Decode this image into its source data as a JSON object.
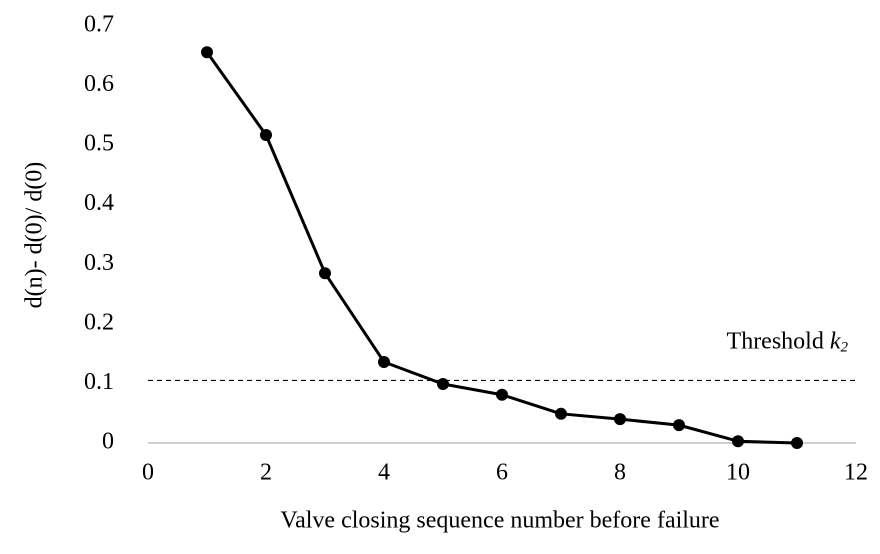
{
  "chart_data": {
    "type": "line",
    "x_label": "Valve closing sequence number before failure",
    "y_label": "d(n)- d(0)/ d(0)",
    "x": [
      1,
      2,
      3,
      4,
      5,
      6,
      7,
      8,
      9,
      10,
      11
    ],
    "series": [
      {
        "color": "#000000",
        "values": [
          0.656,
          0.517,
          0.285,
          0.136,
          0.099,
          0.081,
          0.049,
          0.04,
          0.03,
          0.003,
          0
        ]
      }
    ],
    "threshold": {
      "label": "Threshold",
      "symbol": "k",
      "subscript": "2",
      "value": 0.105
    },
    "xlim": [
      0,
      12
    ],
    "xticks": [
      0,
      2,
      4,
      6,
      8,
      10,
      12
    ],
    "ylim": [
      0,
      0.7
    ],
    "yticks": [
      0,
      0.1,
      0.2,
      0.3,
      0.4,
      0.5,
      0.6,
      0.7
    ],
    "grid": false
  }
}
